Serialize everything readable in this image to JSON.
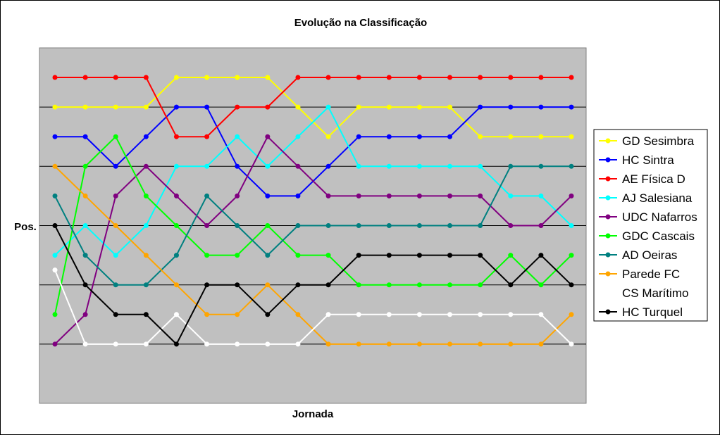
{
  "chart_data": {
    "type": "line",
    "title": "Evolução na Classificação",
    "xlabel": "Jornada",
    "ylabel": "Pos.",
    "y_scale": "reversed",
    "ylim": [
      1,
      10
    ],
    "x_count": 18,
    "grid": "horizontal",
    "legend_position": "right",
    "plot_background": "#c0c0c0",
    "series": [
      {
        "name": "GD Sesimbra",
        "color": "#ffff00",
        "values": [
          2,
          2,
          2,
          2,
          1,
          1,
          1,
          1,
          2,
          3,
          2,
          2,
          2,
          2,
          3,
          3,
          3,
          3
        ]
      },
      {
        "name": "HC Sintra",
        "color": "#0000ff",
        "values": [
          3,
          3,
          4,
          3,
          2,
          2,
          4,
          5,
          5,
          4,
          3,
          3,
          3,
          3,
          2,
          2,
          2,
          2
        ]
      },
      {
        "name": "AE Física D",
        "color": "#ff0000",
        "values": [
          1,
          1,
          1,
          1,
          3,
          3,
          2,
          2,
          1,
          1,
          1,
          1,
          1,
          1,
          1,
          1,
          1,
          1
        ]
      },
      {
        "name": "AJ Salesiana",
        "color": "#00ffff",
        "values": [
          7,
          6,
          7,
          6,
          4,
          4,
          3,
          4,
          3,
          2,
          4,
          4,
          4,
          4,
          4,
          5,
          5,
          6
        ]
      },
      {
        "name": "UDC Nafarros",
        "color": "#800080",
        "values": [
          10,
          9,
          5,
          4,
          5,
          6,
          5,
          3,
          4,
          5,
          5,
          5,
          5,
          5,
          5,
          6,
          6,
          5
        ]
      },
      {
        "name": "GDC Cascais",
        "color": "#00ff00",
        "values": [
          9,
          4,
          3,
          5,
          6,
          7,
          7,
          6,
          7,
          7,
          8,
          8,
          8,
          8,
          8,
          7,
          8,
          7
        ]
      },
      {
        "name": "AD Oeiras",
        "color": "#008080",
        "values": [
          5,
          7,
          8,
          8,
          7,
          5,
          6,
          7,
          6,
          6,
          6,
          6,
          6,
          6,
          6,
          4,
          4,
          4
        ]
      },
      {
        "name": "Parede FC",
        "color": "#ffa500",
        "values": [
          4,
          5,
          6,
          7,
          8,
          9,
          9,
          8,
          9,
          10,
          10,
          10,
          10,
          10,
          10,
          10,
          10,
          9
        ]
      },
      {
        "name": "CS Marítimo",
        "color": "#ffffff",
        "values": [
          7.5,
          10,
          10,
          10,
          9,
          10,
          10,
          10,
          10,
          9,
          9,
          9,
          9,
          9,
          9,
          9,
          9,
          10
        ]
      },
      {
        "name": "HC Turquel",
        "color": "#000000",
        "values": [
          6,
          8,
          9,
          9,
          10,
          8,
          8,
          9,
          8,
          8,
          7,
          7,
          7,
          7,
          7,
          8,
          7,
          8
        ]
      }
    ]
  }
}
